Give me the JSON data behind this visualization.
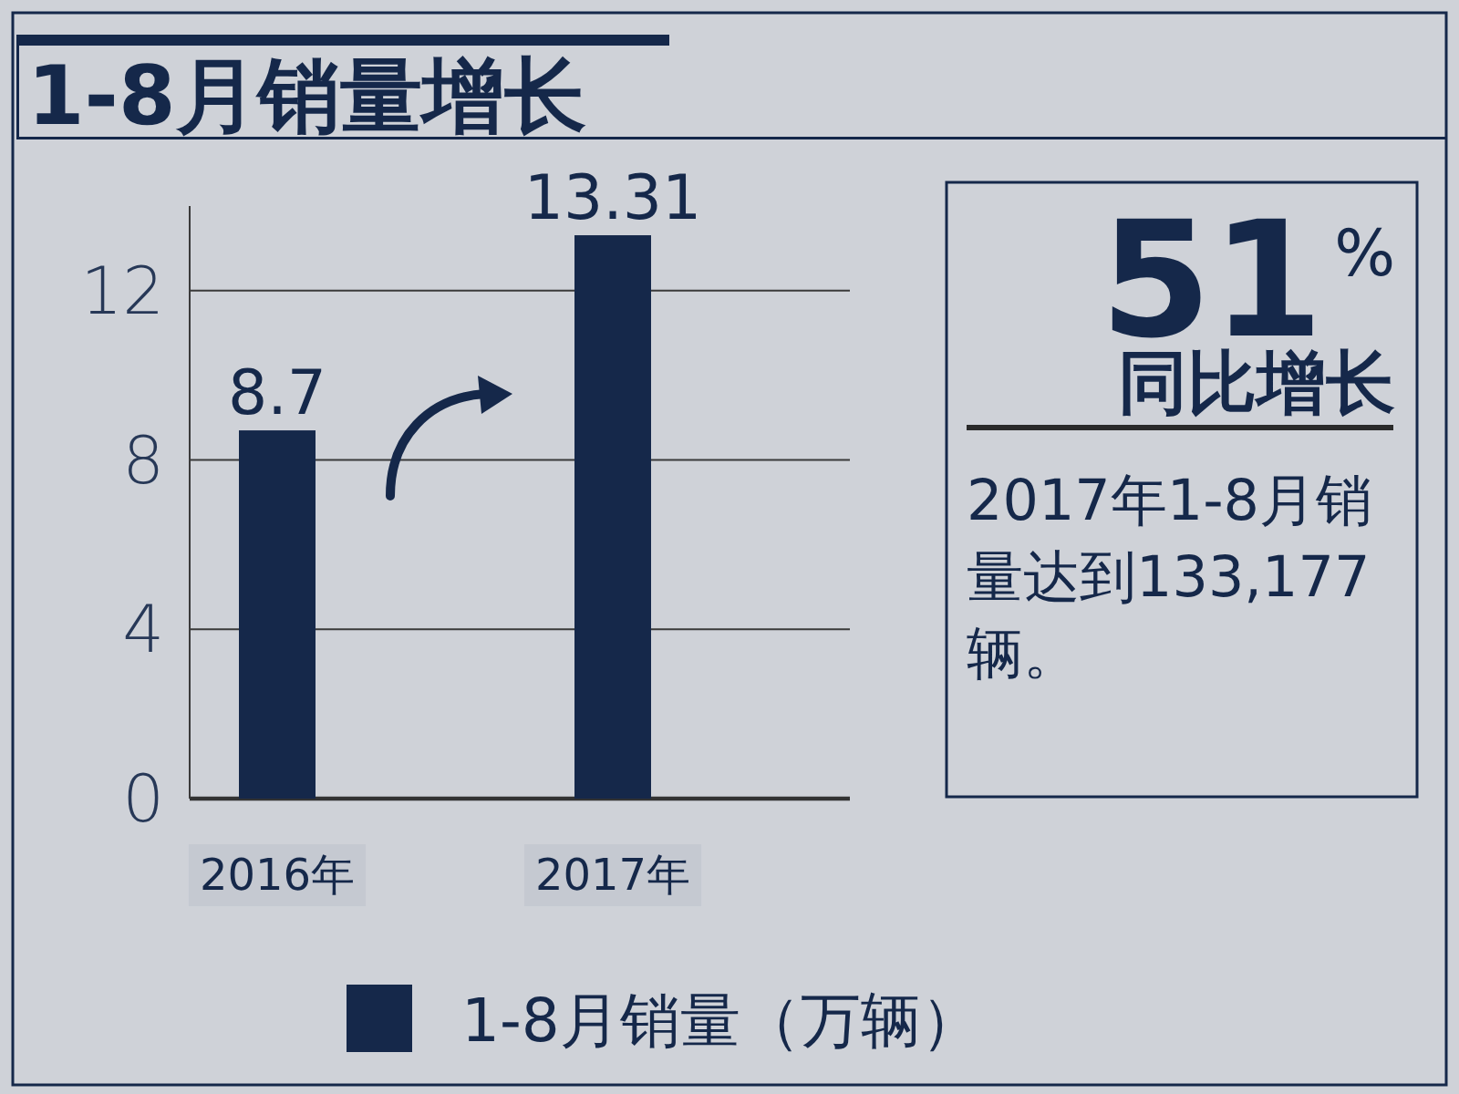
{
  "chart_data": {
    "type": "bar",
    "title": "1-8月销量增长",
    "categories": [
      "2016年",
      "2017年"
    ],
    "series": [
      {
        "name": "1-8月销量（万辆）",
        "color": "#15284a",
        "values": [
          8.7,
          13.31
        ]
      }
    ],
    "ylim": [
      0,
      14
    ],
    "yticks": [
      0,
      4,
      8,
      12
    ],
    "grid": "y",
    "legend": "bottom",
    "data_labels": true,
    "annotations": [
      "51$^{%}$",
      "同比增长",
      "2017年1-8月销量达到133,177辆。"
    ]
  }
}
